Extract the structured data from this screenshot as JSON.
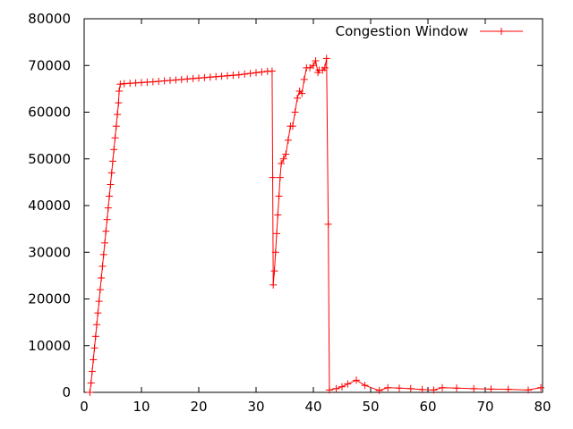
{
  "chart_data": {
    "type": "line",
    "title": "",
    "xlabel": "",
    "ylabel": "",
    "xlim": [
      0,
      80
    ],
    "ylim": [
      0,
      80000
    ],
    "x_ticks": [
      0,
      10,
      20,
      30,
      40,
      50,
      60,
      70,
      80
    ],
    "y_ticks": [
      0,
      10000,
      20000,
      30000,
      40000,
      50000,
      60000,
      70000,
      80000
    ],
    "grid": false,
    "legend_position": "top-right",
    "series": [
      {
        "name": "Congestion Window",
        "color": "#ff0000",
        "marker": "plus",
        "points": [
          [
            1.0,
            0
          ],
          [
            1.2,
            2000
          ],
          [
            1.4,
            4500
          ],
          [
            1.6,
            7000
          ],
          [
            1.8,
            9500
          ],
          [
            2.0,
            12000
          ],
          [
            2.2,
            14500
          ],
          [
            2.4,
            17000
          ],
          [
            2.6,
            19500
          ],
          [
            2.8,
            22000
          ],
          [
            3.0,
            24500
          ],
          [
            3.2,
            27000
          ],
          [
            3.4,
            29500
          ],
          [
            3.6,
            32000
          ],
          [
            3.8,
            34500
          ],
          [
            4.0,
            37000
          ],
          [
            4.2,
            39500
          ],
          [
            4.4,
            42000
          ],
          [
            4.6,
            44500
          ],
          [
            4.8,
            47000
          ],
          [
            5.0,
            49500
          ],
          [
            5.2,
            52000
          ],
          [
            5.4,
            54500
          ],
          [
            5.6,
            57000
          ],
          [
            5.8,
            59500
          ],
          [
            6.0,
            62000
          ],
          [
            6.1,
            64500
          ],
          [
            6.3,
            66000
          ],
          [
            7,
            66100
          ],
          [
            8,
            66180
          ],
          [
            9,
            66260
          ],
          [
            10,
            66340
          ],
          [
            11,
            66420
          ],
          [
            12,
            66500
          ],
          [
            13,
            66600
          ],
          [
            14,
            66700
          ],
          [
            15,
            66800
          ],
          [
            16,
            66900
          ],
          [
            17,
            67000
          ],
          [
            18,
            67100
          ],
          [
            19,
            67200
          ],
          [
            20,
            67300
          ],
          [
            21,
            67400
          ],
          [
            22,
            67500
          ],
          [
            23,
            67600
          ],
          [
            24,
            67700
          ],
          [
            25,
            67800
          ],
          [
            26,
            67900
          ],
          [
            27,
            68000
          ],
          [
            28,
            68150
          ],
          [
            29,
            68300
          ],
          [
            30,
            68450
          ],
          [
            31,
            68600
          ],
          [
            32,
            68750
          ],
          [
            32.8,
            68800
          ],
          [
            32.9,
            46000
          ],
          [
            33.0,
            23000
          ],
          [
            33.2,
            26000
          ],
          [
            33.4,
            30000
          ],
          [
            33.6,
            34000
          ],
          [
            33.8,
            38000
          ],
          [
            34.0,
            42000
          ],
          [
            34.2,
            46000
          ],
          [
            34.4,
            49000
          ],
          [
            34.8,
            50000
          ],
          [
            35.2,
            51000
          ],
          [
            35.6,
            54000
          ],
          [
            36.0,
            57000
          ],
          [
            36.4,
            57000
          ],
          [
            36.8,
            60000
          ],
          [
            37.2,
            63000
          ],
          [
            37.6,
            64500
          ],
          [
            38.0,
            64000
          ],
          [
            38.4,
            67000
          ],
          [
            38.8,
            69500
          ],
          [
            39.4,
            69500
          ],
          [
            40.0,
            70000
          ],
          [
            40.4,
            71000
          ],
          [
            40.8,
            68500
          ],
          [
            41.0,
            69000
          ],
          [
            41.6,
            69000
          ],
          [
            42.0,
            69500
          ],
          [
            42.3,
            71500
          ],
          [
            42.6,
            36000
          ],
          [
            42.8,
            500
          ],
          [
            44,
            800
          ],
          [
            45,
            1200
          ],
          [
            46,
            1800
          ],
          [
            47.5,
            2600
          ],
          [
            49,
            1500
          ],
          [
            51.5,
            400
          ],
          [
            53,
            1000
          ],
          [
            55,
            900
          ],
          [
            57,
            800
          ],
          [
            59,
            600
          ],
          [
            61,
            500
          ],
          [
            62.5,
            1000
          ],
          [
            65,
            900
          ],
          [
            68,
            800
          ],
          [
            71,
            700
          ],
          [
            74,
            650
          ],
          [
            77.5,
            500
          ],
          [
            79.7,
            1000
          ]
        ]
      }
    ]
  }
}
